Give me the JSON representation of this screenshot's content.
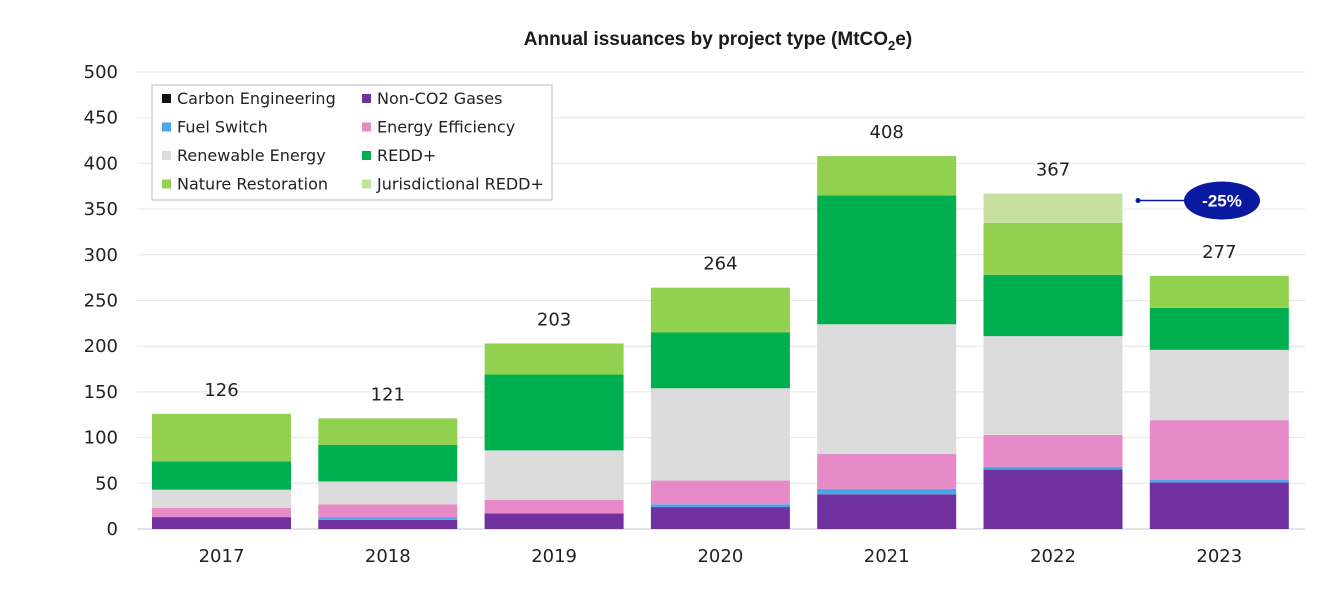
{
  "chart_data": {
    "type": "bar",
    "stacked": true,
    "title": "Annual issuances by project type (MtCO",
    "title_subscript": "2",
    "title_suffix": "e)",
    "categories": [
      "2017",
      "2018",
      "2019",
      "2020",
      "2021",
      "2022",
      "2023"
    ],
    "totals": [
      "126",
      "121",
      "203",
      "264",
      "408",
      "367",
      "277"
    ],
    "ylim": [
      0,
      500
    ],
    "yticks": [
      "0",
      "50",
      "100",
      "150",
      "200",
      "250",
      "300",
      "350",
      "400",
      "450",
      "500"
    ],
    "grid": true,
    "legend_position": "top-left",
    "series": [
      {
        "name": "Carbon Engineering",
        "color": "#111111",
        "values": [
          0,
          0,
          0,
          0,
          0,
          0,
          0
        ]
      },
      {
        "name": "Non-CO2 Gases",
        "color": "#7030a0",
        "values": [
          13,
          10,
          17,
          24,
          38,
          65,
          51
        ]
      },
      {
        "name": "Fuel Switch",
        "color": "#4aa8e8",
        "values": [
          0,
          3,
          0,
          3,
          6,
          3,
          3
        ]
      },
      {
        "name": "Energy Efficiency",
        "color": "#e68ac8",
        "values": [
          10,
          14,
          15,
          26,
          38,
          35,
          65
        ]
      },
      {
        "name": "Renewable Energy",
        "color": "#dcdcdc",
        "values": [
          20,
          25,
          54,
          101,
          142,
          108,
          77
        ]
      },
      {
        "name": "REDD+",
        "color": "#00b050",
        "values": [
          31,
          40,
          83,
          61,
          141,
          67,
          46
        ]
      },
      {
        "name": "Nature Restoration",
        "color": "#92d050",
        "values": [
          52,
          29,
          34,
          49,
          43,
          57,
          35
        ]
      },
      {
        "name": "Jurisdictional REDD+",
        "color": "#c5e0a0",
        "values": [
          0,
          0,
          0,
          0,
          0,
          32,
          0
        ]
      }
    ],
    "annotation": {
      "text": "-25%",
      "color": "#0a1aa0",
      "from": "2022",
      "to": "2023"
    }
  }
}
